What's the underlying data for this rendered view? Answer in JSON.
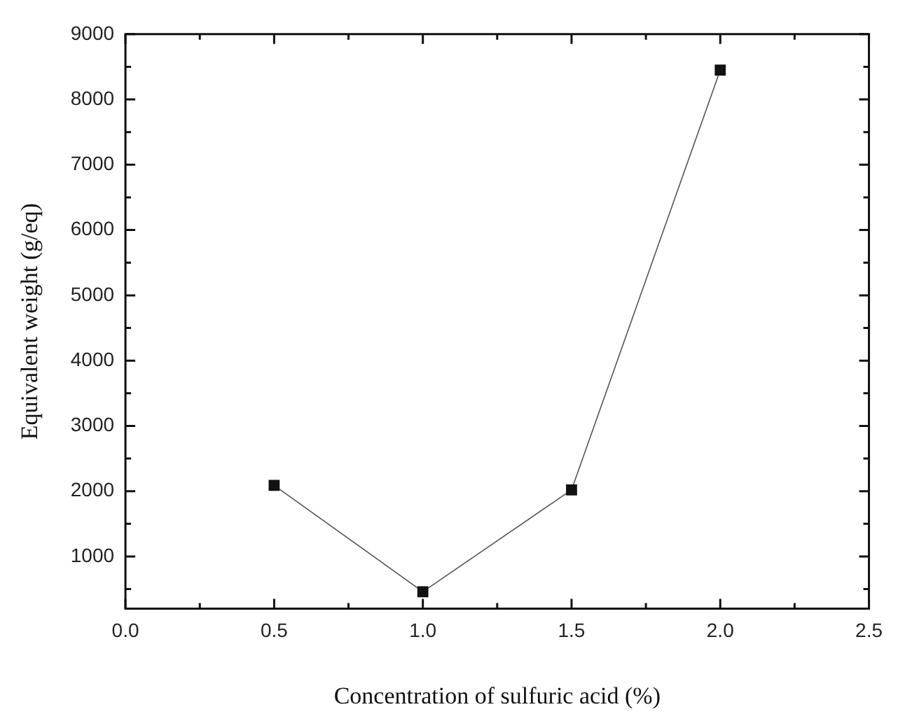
{
  "chart_data": {
    "type": "line",
    "xlabel": "Concentration of sulfuric acid (%)",
    "ylabel": "Equivalent weight (g/eq)",
    "x": [
      0.5,
      1.0,
      1.5,
      2.0
    ],
    "series": [
      {
        "color": "#111111",
        "values": [
          2090,
          460,
          2020,
          8450
        ]
      }
    ],
    "marker": "square",
    "line_style": "solid",
    "legend": false,
    "grid": false,
    "xlim": [
      0,
      2.5
    ],
    "xticks": [
      {
        "value": 0,
        "label": "0.0"
      },
      0.5,
      {
        "value": 1,
        "label": "1.0"
      },
      1.5,
      {
        "value": 2,
        "label": "2.0"
      },
      2.5
    ],
    "ylim": [
      200,
      9000
    ],
    "yticks": [
      1000,
      2000,
      3000,
      4000,
      5000,
      6000,
      7000,
      8000,
      9000
    ]
  }
}
